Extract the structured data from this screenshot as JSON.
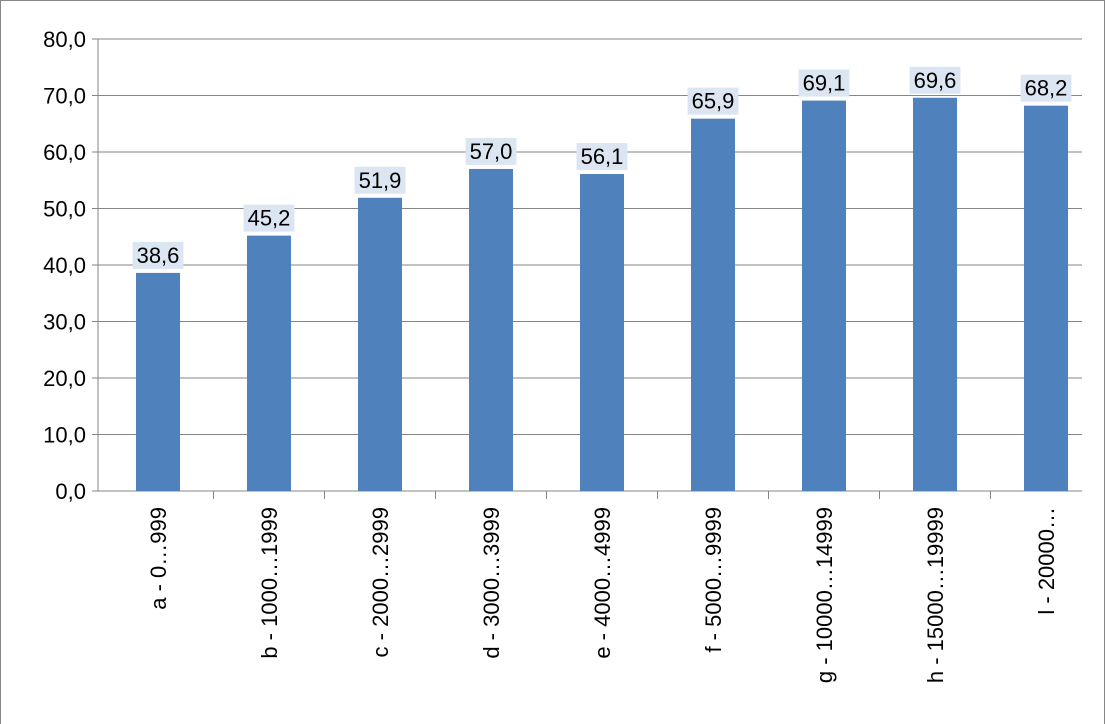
{
  "chart_data": {
    "type": "bar",
    "categories": [
      "a - 0…999",
      "b - 1000…1999",
      "c - 2000…2999",
      "d - 3000…3999",
      "e - 4000…4999",
      "f - 5000…9999",
      "g - 10000…14999",
      "h - 15000…19999",
      "l - 20000…"
    ],
    "values": [
      38.6,
      45.2,
      51.9,
      57.0,
      56.1,
      65.9,
      69.1,
      69.6,
      68.2
    ],
    "value_labels": [
      "38,6",
      "45,2",
      "51,9",
      "57,0",
      "56,1",
      "65,9",
      "69,1",
      "69,6",
      "68,2"
    ],
    "color": "#4f81bd",
    "ylim": [
      0,
      80
    ],
    "yticks": [
      {
        "value": 0,
        "label": "0,0"
      },
      {
        "value": 10,
        "label": "10,0"
      },
      {
        "value": 20,
        "label": "20,0"
      },
      {
        "value": 30,
        "label": "30,0"
      },
      {
        "value": 40,
        "label": "40,0"
      },
      {
        "value": 50,
        "label": "50,0"
      },
      {
        "value": 60,
        "label": "60,0"
      },
      {
        "value": 70,
        "label": "70,0"
      },
      {
        "value": 80,
        "label": "80,0"
      }
    ],
    "grid": true
  }
}
